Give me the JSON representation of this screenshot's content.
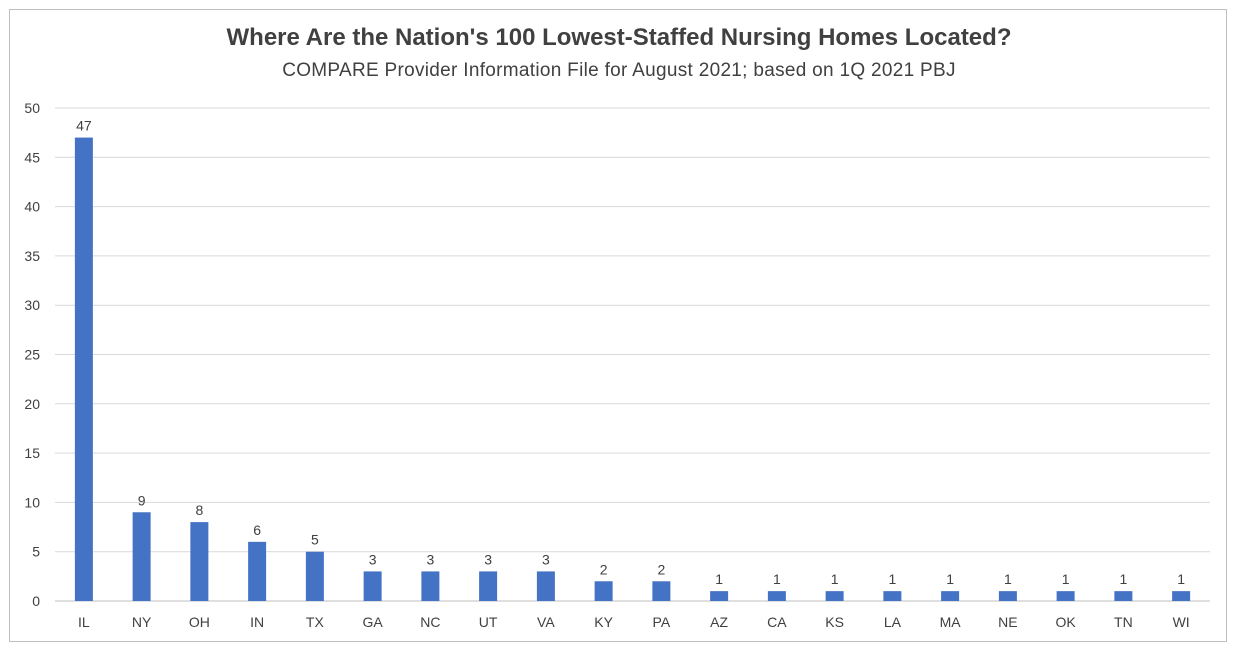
{
  "chart_data": {
    "type": "bar",
    "title": "Where Are the Nation's 100 Lowest-Staffed Nursing Homes Located?",
    "subtitle": "COMPARE Provider Information File for August 2021; based on 1Q 2021 PBJ",
    "categories": [
      "IL",
      "NY",
      "OH",
      "IN",
      "TX",
      "GA",
      "NC",
      "UT",
      "VA",
      "KY",
      "PA",
      "AZ",
      "CA",
      "KS",
      "LA",
      "MA",
      "NE",
      "OK",
      "TN",
      "WI"
    ],
    "values": [
      47,
      9,
      8,
      6,
      5,
      3,
      3,
      3,
      3,
      2,
      2,
      1,
      1,
      1,
      1,
      1,
      1,
      1,
      1,
      1
    ],
    "ylim": [
      0,
      50
    ],
    "yticks": [
      0,
      5,
      10,
      15,
      20,
      25,
      30,
      35,
      40,
      45,
      50
    ],
    "grid": true,
    "legend": "none",
    "bar_color": "#4472c4",
    "grid_color": "#d9d9d9"
  }
}
